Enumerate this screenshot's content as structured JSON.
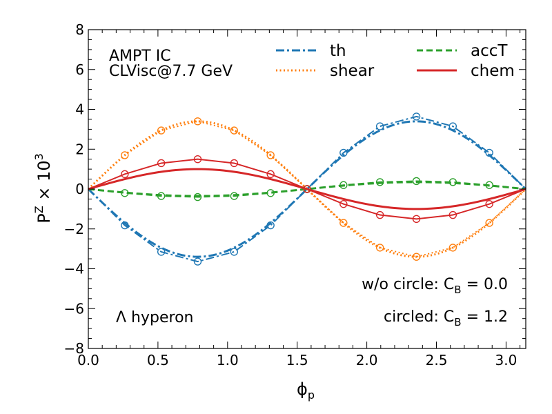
{
  "chart_data": {
    "type": "line",
    "title": "",
    "xlabel": "ϕ",
    "xlabel_sub": "p",
    "ylabel": "P",
    "ylabel_sup": "Z",
    "ylabel_tail": " × 10",
    "ylabel_tail_sup": "3",
    "xlim": [
      0,
      3.1416
    ],
    "ylim": [
      -8,
      8
    ],
    "xticks": [
      0.0,
      0.5,
      1.0,
      1.5,
      2.0,
      2.5,
      3.0
    ],
    "xtick_labels": [
      "0.0",
      "0.5",
      "1.0",
      "1.5",
      "2.0",
      "2.5",
      "3.0"
    ],
    "yticks": [
      -8,
      -6,
      -4,
      -2,
      0,
      2,
      4,
      6,
      8
    ],
    "ytick_labels": [
      "−8",
      "−6",
      "−4",
      "−2",
      "0",
      "2",
      "4",
      "6",
      "8"
    ],
    "grid": false,
    "legend_position": "top-right",
    "annotations": {
      "model_line1": "AMPT IC",
      "model_line2": "CLVisc@7.7 GeV",
      "particle": "Λ hyperon",
      "wo_circle_prefix": "w/o circle: C",
      "wo_circle_sub": "B",
      "wo_circle_suffix": " = 0.0",
      "circled_prefix": "circled: C",
      "circled_sub": "B",
      "circled_suffix": " = 1.2"
    },
    "series": [
      {
        "key": "th",
        "name": "th",
        "color": "#1f77b4",
        "style": "dashdot",
        "line_amplitude": -3.4,
        "circles_x": [
          0.0,
          0.2618,
          0.5236,
          0.7854,
          1.0472,
          1.309,
          1.5708,
          1.8326,
          2.0944,
          2.3562,
          2.618,
          2.8798,
          3.1416
        ],
        "circles_y": [
          0.0,
          -1.82,
          -3.15,
          -3.64,
          -3.15,
          -1.82,
          0.0,
          1.82,
          3.15,
          3.64,
          3.15,
          1.82,
          0.0
        ]
      },
      {
        "key": "shear",
        "name": "shear",
        "color": "#ff7f0e",
        "style": "dotted",
        "line_amplitude": 3.4,
        "circles_x": [
          0.0,
          0.2618,
          0.5236,
          0.7854,
          1.0472,
          1.309,
          1.5708,
          1.8326,
          2.0944,
          2.3562,
          2.618,
          2.8798,
          3.1416
        ],
        "circles_y": [
          0.0,
          1.7,
          2.94,
          3.4,
          2.94,
          1.7,
          0.0,
          -1.7,
          -2.94,
          -3.4,
          -2.94,
          -1.7,
          0.0
        ]
      },
      {
        "key": "accT",
        "name": "accT",
        "color": "#2ca02c",
        "style": "dashed",
        "line_amplitude": -0.35,
        "circles_x": [
          0.0,
          0.2618,
          0.5236,
          0.7854,
          1.0472,
          1.309,
          1.5708,
          1.8326,
          2.0944,
          2.3562,
          2.618,
          2.8798,
          3.1416
        ],
        "circles_y": [
          0.0,
          -0.2,
          -0.35,
          -0.4,
          -0.35,
          -0.2,
          0.0,
          0.2,
          0.35,
          0.4,
          0.35,
          0.2,
          0.0
        ]
      },
      {
        "key": "chem",
        "name": "chem",
        "color": "#d62728",
        "style": "solid",
        "line_amplitude": 1.0,
        "circles_x": [
          0.0,
          0.2618,
          0.5236,
          0.7854,
          1.0472,
          1.309,
          1.5708,
          1.8326,
          2.0944,
          2.3562,
          2.618,
          2.8798,
          3.1416
        ],
        "circles_y": [
          0.0,
          0.75,
          1.3,
          1.5,
          1.3,
          0.75,
          0.0,
          -0.75,
          -1.3,
          -1.5,
          -1.3,
          -0.75,
          0.0
        ]
      }
    ]
  }
}
